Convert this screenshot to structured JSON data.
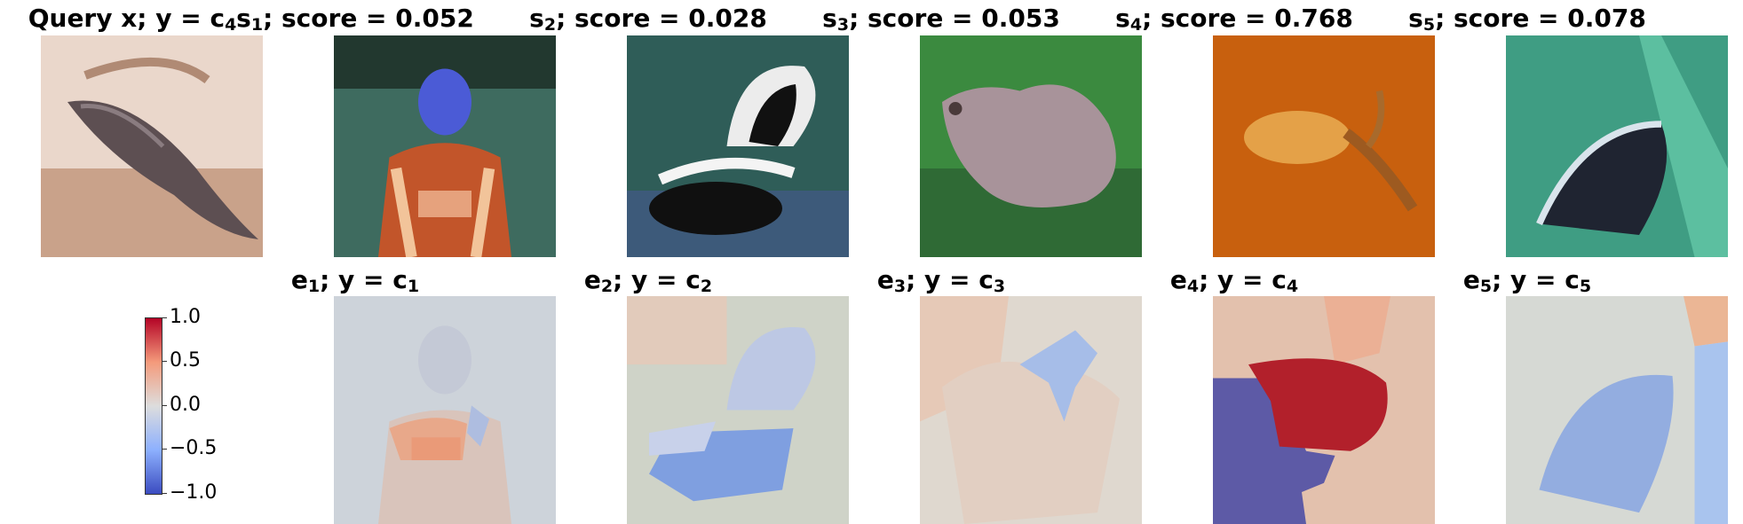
{
  "top_row": [
    {
      "prefix": "Query x; y = c",
      "sub": "4",
      "suffix": "",
      "image": "query-image-whale"
    },
    {
      "prefix": "s",
      "sub": "1",
      "suffix": "; score = 0.052",
      "image": "support-image-boy"
    },
    {
      "prefix": "s",
      "sub": "2",
      "suffix": "; score = 0.028",
      "image": "support-image-skunk"
    },
    {
      "prefix": "s",
      "sub": "3",
      "suffix": "; score = 0.053",
      "image": "support-image-animal"
    },
    {
      "prefix": "s",
      "sub": "4",
      "suffix": "; score = 0.768",
      "image": "support-image-fish"
    },
    {
      "prefix": "s",
      "sub": "5",
      "suffix": "; score = 0.078",
      "image": "support-image-skunk-partial"
    }
  ],
  "bottom_row": [
    {
      "prefix": "e",
      "sub": "1",
      "mid": "; y = c",
      "sub2": "1"
    },
    {
      "prefix": "e",
      "sub": "2",
      "mid": "; y = c",
      "sub2": "2"
    },
    {
      "prefix": "e",
      "sub": "3",
      "mid": "; y = c",
      "sub2": "3"
    },
    {
      "prefix": "e",
      "sub": "4",
      "mid": "; y = c",
      "sub2": "4"
    },
    {
      "prefix": "e",
      "sub": "5",
      "mid": "; y = c",
      "sub2": "5"
    }
  ],
  "colorbar": {
    "ticks": [
      "1.0",
      "0.5",
      "0.0",
      "−0.5",
      "−1.0"
    ],
    "colors": {
      "high": "#b40426",
      "mid": "#dddddd",
      "low": "#3b4cc0"
    }
  }
}
